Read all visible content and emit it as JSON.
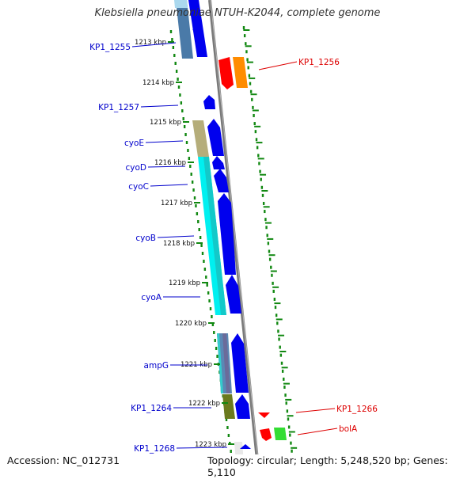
{
  "title": {
    "species": "Klebsiella pneumoniae",
    "strain": " NTUH-K2044, complete genome"
  },
  "footer": {
    "accession_label": "Accession:",
    "accession": "NC_012731",
    "topology_label": "Topology:",
    "topology": "circular",
    "length_label": "Length:",
    "length": "5,248,520 bp",
    "genes_label": "Genes:",
    "genes": "5,110"
  },
  "colors": {
    "forward_label": "#0000cc",
    "reverse_label": "#dd0000",
    "backbone": "#888888",
    "ruler": "#118811"
  },
  "ticks": [
    "1213 kbp",
    "1214 kbp",
    "1215 kbp",
    "1216 kbp",
    "1217 kbp",
    "1218 kbp",
    "1219 kbp",
    "1220 kbp",
    "1221 kbp",
    "1222 kbp",
    "1223 kbp"
  ],
  "forward_labels": [
    "KP1_1255",
    "KP1_1257",
    "cyoE",
    "cyoD",
    "cyoC",
    "cyoB",
    "cyoA",
    "ampG",
    "KP1_1264",
    "KP1_1268"
  ],
  "reverse_labels": [
    "KP1_1256",
    "KP1_1266",
    "bolA"
  ]
}
